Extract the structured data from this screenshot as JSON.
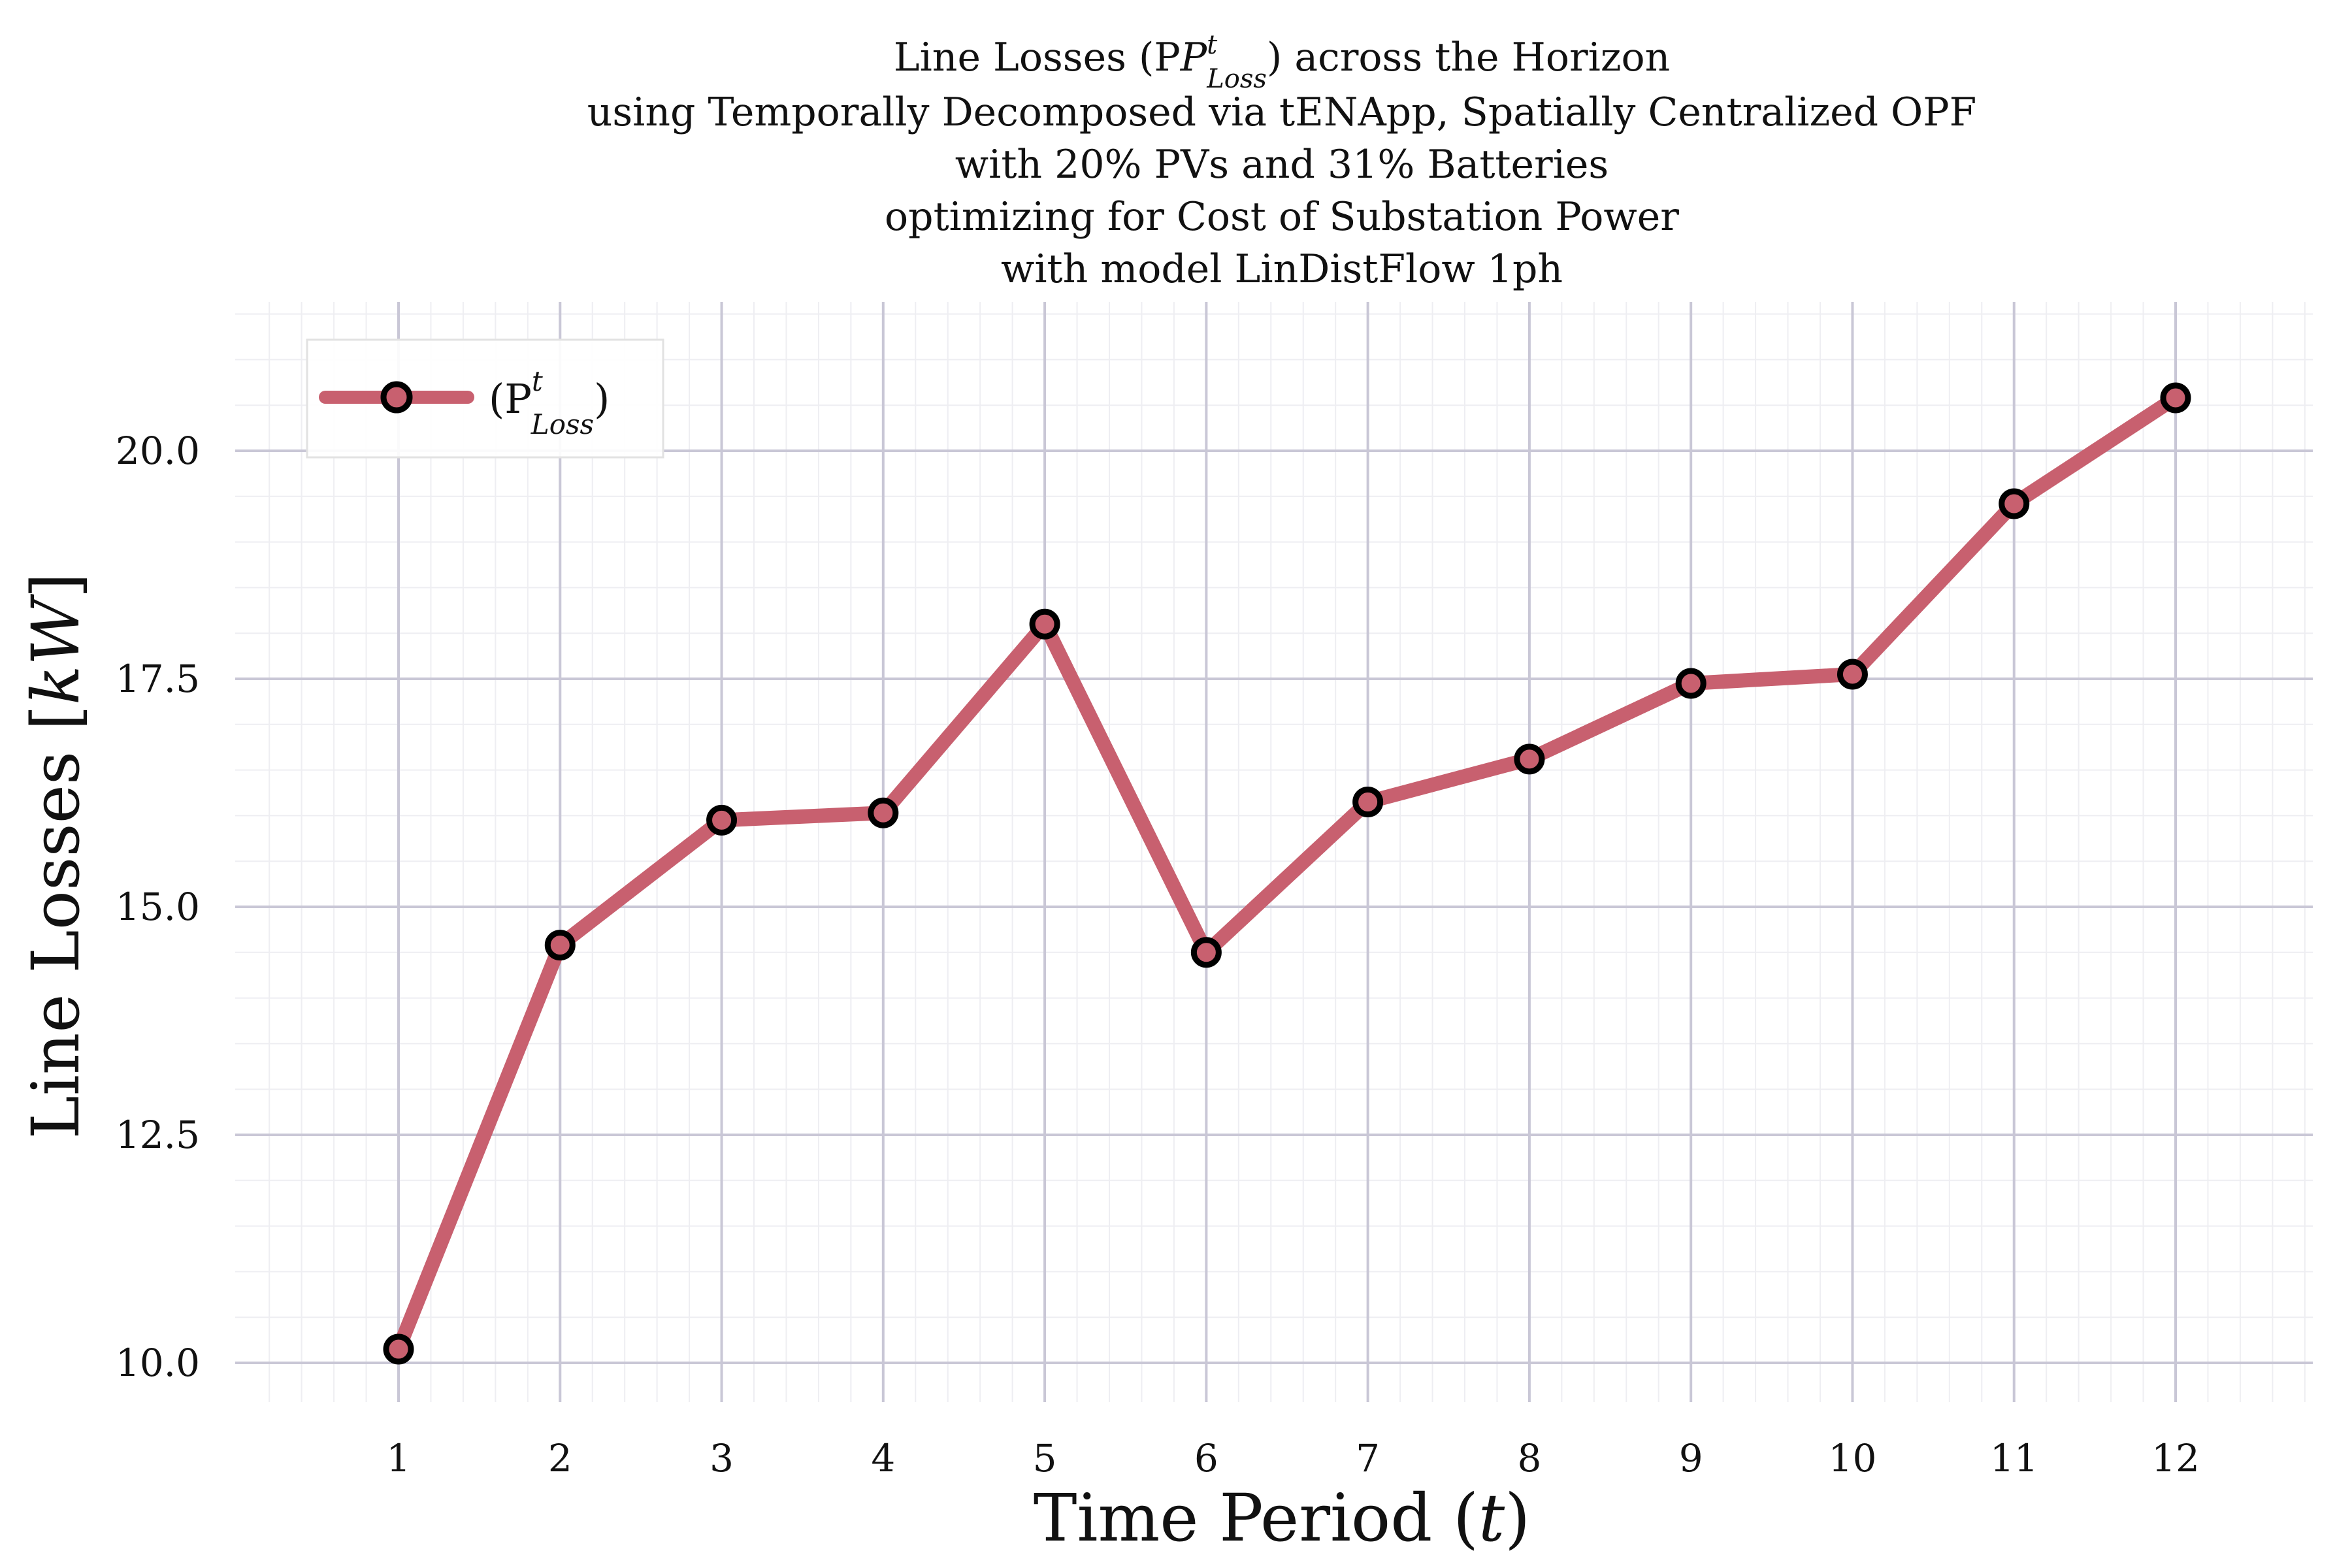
{
  "chart_data": {
    "type": "line",
    "title_lines": [
      "Line Losses (P",
      "using Temporally Decomposed via tENApp, Spatially Centralized OPF",
      "with 20% PVs and 31% Batteries",
      "optimizing for Cost of Substation Power",
      "with model LinDistFlow 1ph"
    ],
    "title_symbol": {
      "base": "P",
      "sup": "t",
      "sub": "Loss",
      "suffix": ") across the Horizon"
    },
    "xlabel": {
      "text": "Time Period (",
      "var": "t",
      "close": ")"
    },
    "ylabel": {
      "text": "Line Losses [",
      "unit": "kW",
      "close": "]"
    },
    "x": [
      1,
      2,
      3,
      4,
      5,
      6,
      7,
      8,
      9,
      10,
      11,
      12
    ],
    "x_tick_labels": [
      "1",
      "2",
      "3",
      "4",
      "5",
      "6",
      "7",
      "8",
      "9",
      "10",
      "11",
      "12"
    ],
    "y_ticks": [
      10.0,
      12.5,
      15.0,
      17.5,
      20.0
    ],
    "y_tick_labels": [
      "10.0",
      "12.5",
      "15.0",
      "17.5",
      "20.0"
    ],
    "xlim": [
      0,
      13
    ],
    "ylim": [
      9.6,
      21.6
    ],
    "grid": true,
    "legend_position": "top-left",
    "series": [
      {
        "name": "(P",
        "legend_sup": "t",
        "legend_sub": "Loss",
        "legend_close": ")",
        "values": [
          10.15,
          14.58,
          15.95,
          16.03,
          18.1,
          14.5,
          16.15,
          16.62,
          17.45,
          17.55,
          19.42,
          20.58
        ],
        "color": "#c8606f",
        "marker_edge": "#000000"
      }
    ]
  }
}
